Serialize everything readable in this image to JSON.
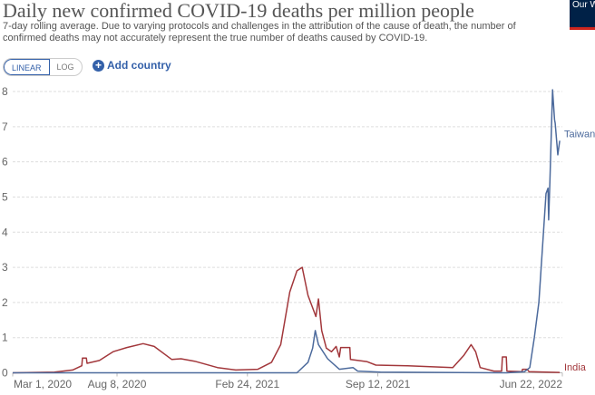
{
  "header": {
    "title": "Daily new confirmed COVID-19 deaths per million people",
    "subtitle": "7-day rolling average. Due to varying protocols and challenges in the attribution of the cause of death, the number of confirmed deaths may not accurately represent the true number of deaths caused by COVID-19.",
    "logo_text": "Our World in Data"
  },
  "controls": {
    "linear": "LINEAR",
    "log": "LOG",
    "add_country": "Add country"
  },
  "chart_data": {
    "type": "line",
    "title": "Daily new confirmed COVID-19 deaths per million people",
    "x_unit": "days since Mar 1, 2020",
    "xlim": [
      0,
      843
    ],
    "ylim": [
      0,
      8
    ],
    "yticks": [
      0,
      1,
      2,
      3,
      4,
      5,
      6,
      7,
      8
    ],
    "xticks": [
      {
        "x": 0,
        "label": "Mar 1, 2020"
      },
      {
        "x": 160,
        "label": "Aug 8, 2020"
      },
      {
        "x": 360,
        "label": "Feb 24, 2021"
      },
      {
        "x": 560,
        "label": "Sep 12, 2021"
      },
      {
        "x": 843,
        "label": "Jun 22, 2022"
      }
    ],
    "grid": true,
    "series": [
      {
        "name": "India",
        "color": "#a2373b",
        "points": [
          [
            0,
            0
          ],
          [
            64,
            0.02
          ],
          [
            92,
            0.08
          ],
          [
            106,
            0.2
          ],
          [
            107,
            0.42
          ],
          [
            113,
            0.42
          ],
          [
            114,
            0.27
          ],
          [
            133,
            0.35
          ],
          [
            154,
            0.6
          ],
          [
            175,
            0.72
          ],
          [
            200,
            0.83
          ],
          [
            217,
            0.75
          ],
          [
            244,
            0.38
          ],
          [
            258,
            0.4
          ],
          [
            279,
            0.33
          ],
          [
            314,
            0.15
          ],
          [
            342,
            0.08
          ],
          [
            376,
            0.1
          ],
          [
            397,
            0.3
          ],
          [
            411,
            0.8
          ],
          [
            425,
            2.3
          ],
          [
            436,
            2.9
          ],
          [
            444,
            3.0
          ],
          [
            453,
            2.2
          ],
          [
            465,
            1.6
          ],
          [
            469,
            2.1
          ],
          [
            474,
            1.2
          ],
          [
            481,
            0.7
          ],
          [
            489,
            0.6
          ],
          [
            496,
            0.75
          ],
          [
            501,
            0.45
          ],
          [
            503,
            0.72
          ],
          [
            517,
            0.72
          ],
          [
            518,
            0.38
          ],
          [
            543,
            0.32
          ],
          [
            557,
            0.22
          ],
          [
            606,
            0.2
          ],
          [
            675,
            0.15
          ],
          [
            692,
            0.5
          ],
          [
            703,
            0.8
          ],
          [
            710,
            0.6
          ],
          [
            717,
            0.15
          ],
          [
            738,
            0.05
          ],
          [
            750,
            0.05
          ],
          [
            751,
            0.45
          ],
          [
            757,
            0.45
          ],
          [
            758,
            0.05
          ],
          [
            781,
            0.03
          ],
          [
            782,
            0.1
          ],
          [
            789,
            0.1
          ],
          [
            792,
            0.03
          ],
          [
            839,
            0.01
          ]
        ]
      },
      {
        "name": "Taiwan",
        "color": "#4c6a9c",
        "points": [
          [
            0,
            0
          ],
          [
            436,
            0
          ],
          [
            453,
            0.3
          ],
          [
            460,
            0.7
          ],
          [
            464,
            1.2
          ],
          [
            469,
            0.8
          ],
          [
            483,
            0.4
          ],
          [
            501,
            0.1
          ],
          [
            522,
            0.15
          ],
          [
            529,
            0.05
          ],
          [
            564,
            0.02
          ],
          [
            758,
            0
          ],
          [
            785,
            0.03
          ],
          [
            793,
            0.15
          ],
          [
            800,
            1.0
          ],
          [
            807,
            2.0
          ],
          [
            814,
            4.0
          ],
          [
            818,
            5.1
          ],
          [
            821,
            5.25
          ],
          [
            822,
            4.35
          ],
          [
            824,
            5.45
          ],
          [
            828,
            8.05
          ],
          [
            831,
            7.2
          ],
          [
            832,
            7.1
          ],
          [
            836,
            6.2
          ],
          [
            839,
            6.6
          ]
        ]
      }
    ]
  }
}
